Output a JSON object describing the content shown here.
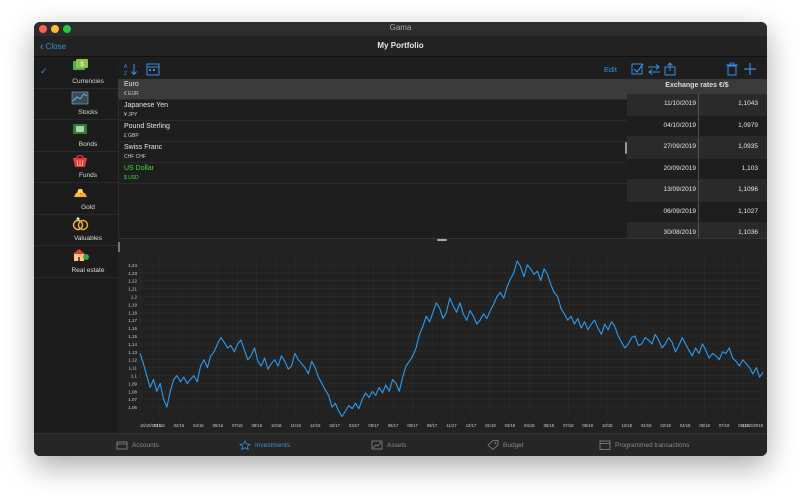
{
  "window": {
    "title": "Gama"
  },
  "navbar": {
    "back_label": "Close",
    "title": "My Portfolio"
  },
  "sidebar": {
    "items": [
      {
        "label": "Currencies",
        "icon": "currencies-icon",
        "selected": true
      },
      {
        "label": "Stocks",
        "icon": "stocks-icon"
      },
      {
        "label": "Bonds",
        "icon": "bonds-icon"
      },
      {
        "label": "Funds",
        "icon": "funds-icon"
      },
      {
        "label": "Gold",
        "icon": "gold-icon"
      },
      {
        "label": "Valuables",
        "icon": "valuables-icon"
      },
      {
        "label": "Real estate",
        "icon": "real-estate-icon"
      }
    ]
  },
  "toolbar": {
    "edit_label": "Edit"
  },
  "currencies": [
    {
      "name": "Euro",
      "code": "€ EUR"
    },
    {
      "name": "Japanese Yen",
      "code": "¥ JPY"
    },
    {
      "name": "Pound Sterling",
      "code": "£ GBP"
    },
    {
      "name": "Swiss Franc",
      "code": "CHF CHF"
    },
    {
      "name": "US Dollar",
      "code": "$ USD"
    }
  ],
  "rates": {
    "header": "Exchange rates €/$",
    "rows": [
      {
        "date": "11/10/2019",
        "value": "1,1043"
      },
      {
        "date": "04/10/2019",
        "value": "1,0979"
      },
      {
        "date": "27/09/2019",
        "value": "1,0935"
      },
      {
        "date": "20/09/2019",
        "value": "1,103"
      },
      {
        "date": "13/09/2019",
        "value": "1,1096"
      },
      {
        "date": "06/09/2019",
        "value": "1,1027"
      },
      {
        "date": "30/08/2019",
        "value": "1,1036"
      }
    ]
  },
  "chart_data": {
    "type": "line",
    "y_ticks": [
      "1,24",
      "1,23",
      "1,22",
      "1,21",
      "1,2",
      "1,19",
      "1,18",
      "1,17",
      "1,16",
      "1,15",
      "1,14",
      "1,13",
      "1,12",
      "1,11",
      "1,1",
      "1,09",
      "1,08",
      "1,07",
      "1,06"
    ],
    "x_ticks": [
      "16/10/2015",
      "01/16",
      "02/16",
      "04/16",
      "05/16",
      "07/16",
      "08/16",
      "10/16",
      "11/16",
      "12/16",
      "02/17",
      "03/17",
      "05/17",
      "06/17",
      "08/17",
      "09/17",
      "11/17",
      "12/17",
      "01/18",
      "03/18",
      "04/18",
      "06/18",
      "07/18",
      "09/18",
      "10/18",
      "12/18",
      "01/19",
      "02/19",
      "04/19",
      "05/19",
      "07/19",
      "08/19",
      "11/10/2019"
    ],
    "ylim": [
      1.05,
      1.25
    ],
    "line_color": "#2d9cf0",
    "series": [
      {
        "values": [
          1.128,
          1.115,
          1.1,
          1.085,
          1.095,
          1.08,
          1.09,
          1.07,
          1.06,
          1.08,
          1.095,
          1.1,
          1.092,
          1.098,
          1.09,
          1.095,
          1.1,
          1.092,
          1.112,
          1.12,
          1.11,
          1.125,
          1.13,
          1.14,
          1.148,
          1.142,
          1.135,
          1.138,
          1.13,
          1.14,
          1.145,
          1.132,
          1.12,
          1.125,
          1.135,
          1.118,
          1.112,
          1.122,
          1.108,
          1.115,
          1.12,
          1.112,
          1.125,
          1.118,
          1.108,
          1.112,
          1.128,
          1.12,
          1.115,
          1.11,
          1.102,
          1.118,
          1.11,
          1.098,
          1.09,
          1.082,
          1.075,
          1.06,
          1.065,
          1.055,
          1.048,
          1.055,
          1.062,
          1.058,
          1.065,
          1.058,
          1.07,
          1.078,
          1.072,
          1.08,
          1.075,
          1.085,
          1.078,
          1.088,
          1.08,
          1.095,
          1.09,
          1.08,
          1.098,
          1.112,
          1.118,
          1.125,
          1.135,
          1.152,
          1.162,
          1.175,
          1.168,
          1.18,
          1.192,
          1.185,
          1.172,
          1.18,
          1.198,
          1.188,
          1.18,
          1.192,
          1.178,
          1.17,
          1.182,
          1.175,
          1.165,
          1.17,
          1.178,
          1.172,
          1.182,
          1.19,
          1.2,
          1.205,
          1.198,
          1.212,
          1.222,
          1.23,
          1.245,
          1.238,
          1.225,
          1.24,
          1.235,
          1.228,
          1.232,
          1.22,
          1.235,
          1.228,
          1.215,
          1.205,
          1.2,
          1.185,
          1.178,
          1.17,
          1.175,
          1.165,
          1.172,
          1.16,
          1.168,
          1.158,
          1.165,
          1.17,
          1.16,
          1.152,
          1.165,
          1.158,
          1.168,
          1.162,
          1.15,
          1.142,
          1.135,
          1.14,
          1.148,
          1.15,
          1.138,
          1.14,
          1.148,
          1.145,
          1.14,
          1.152,
          1.145,
          1.135,
          1.14,
          1.148,
          1.142,
          1.13,
          1.138,
          1.148,
          1.14,
          1.132,
          1.125,
          1.135,
          1.128,
          1.14,
          1.132,
          1.122,
          1.128,
          1.125,
          1.12,
          1.13,
          1.128,
          1.135,
          1.122,
          1.118,
          1.112,
          1.12,
          1.115,
          1.11,
          1.102,
          1.11,
          1.098,
          1.104
        ]
      }
    ]
  },
  "tabs": [
    {
      "label": "Accounts",
      "icon": "accounts-icon"
    },
    {
      "label": "Investments",
      "icon": "investments-icon",
      "active": true
    },
    {
      "label": "Assets",
      "icon": "assets-icon"
    },
    {
      "label": "Budget",
      "icon": "budget-icon"
    },
    {
      "label": "Programmed transactions",
      "icon": "programmed-transactions-icon"
    }
  ]
}
